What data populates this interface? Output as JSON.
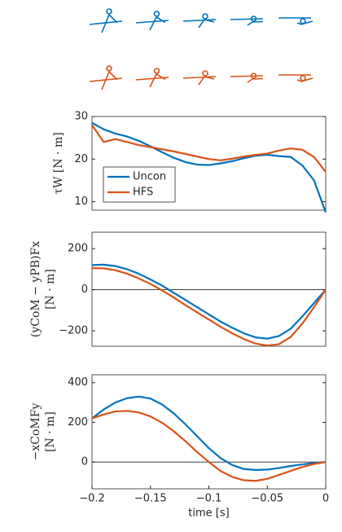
{
  "chart_data": [
    {
      "type": "line",
      "ylabel": "τW [N · m]",
      "x": [
        -0.2,
        -0.19,
        -0.18,
        -0.17,
        -0.16,
        -0.15,
        -0.14,
        -0.13,
        -0.12,
        -0.11,
        -0.1,
        -0.09,
        -0.08,
        -0.07,
        -0.06,
        -0.05,
        -0.04,
        -0.03,
        -0.02,
        -0.01,
        0
      ],
      "xlim": [
        -0.2,
        0
      ],
      "ylim": [
        8,
        30
      ],
      "yticks": [
        10,
        20,
        30
      ],
      "legend": "lower left",
      "series": [
        {
          "name": "Uncon",
          "color": "#0072bd",
          "values": [
            28.5,
            27,
            26,
            25.3,
            24.3,
            23,
            21.6,
            20.3,
            19.3,
            18.7,
            18.6,
            19,
            19.5,
            20.2,
            20.8,
            21,
            20.7,
            20.5,
            18.5,
            15,
            7.5
          ]
        },
        {
          "name": "HFS",
          "color": "#d95319",
          "values": [
            28,
            24,
            24.7,
            24,
            23.3,
            22.8,
            22.3,
            21.8,
            21.2,
            20.6,
            20,
            19.7,
            20.1,
            20.6,
            21,
            21.3,
            22,
            22.5,
            22.2,
            20.5,
            17
          ]
        }
      ]
    },
    {
      "type": "line",
      "ylabel": [
        "(yCoM − yPB)Fx",
        "[N · m]"
      ],
      "x": [
        -0.2,
        -0.19,
        -0.18,
        -0.17,
        -0.16,
        -0.15,
        -0.14,
        -0.13,
        -0.12,
        -0.11,
        -0.1,
        -0.09,
        -0.08,
        -0.07,
        -0.06,
        -0.05,
        -0.04,
        -0.03,
        -0.02,
        -0.01,
        0
      ],
      "xlim": [
        -0.2,
        0
      ],
      "ylim": [
        -275,
        280
      ],
      "yticks": [
        {
          "value": -200,
          "label": "−200"
        },
        0,
        200
      ],
      "zero_line": true,
      "series": [
        {
          "color": "#0072bd",
          "values": [
            120,
            122,
            115,
            100,
            78,
            50,
            20,
            -15,
            -50,
            -85,
            -120,
            -155,
            -185,
            -212,
            -232,
            -238,
            -225,
            -190,
            -130,
            -65,
            0
          ]
        },
        {
          "color": "#d95319",
          "values": [
            105,
            104,
            95,
            78,
            55,
            28,
            -3,
            -38,
            -75,
            -110,
            -145,
            -180,
            -212,
            -240,
            -262,
            -272,
            -265,
            -230,
            -165,
            -85,
            0
          ]
        }
      ]
    },
    {
      "type": "line",
      "ylabel": [
        "−xCoMFy",
        "[N · m]"
      ],
      "xlabel": "time [s]",
      "x": [
        -0.2,
        -0.19,
        -0.18,
        -0.17,
        -0.16,
        -0.15,
        -0.14,
        -0.13,
        -0.12,
        -0.11,
        -0.1,
        -0.09,
        -0.08,
        -0.07,
        -0.06,
        -0.05,
        -0.04,
        -0.03,
        -0.02,
        -0.01,
        0
      ],
      "xlim": [
        -0.2,
        0
      ],
      "ylim": [
        -135,
        440
      ],
      "yticks": [
        0,
        200,
        400
      ],
      "zero_line": true,
      "xticks": [
        {
          "value": -0.2,
          "label": "−0.2"
        },
        {
          "value": -0.15,
          "label": "−0.15"
        },
        {
          "value": -0.1,
          "label": "−0.1"
        },
        {
          "value": -0.05,
          "label": "−0.05"
        },
        0
      ],
      "series": [
        {
          "color": "#0072bd",
          "values": [
            220,
            265,
            300,
            322,
            330,
            320,
            290,
            245,
            190,
            130,
            70,
            20,
            -15,
            -35,
            -40,
            -38,
            -30,
            -20,
            -12,
            -5,
            0
          ]
        },
        {
          "color": "#d95319",
          "values": [
            220,
            240,
            255,
            258,
            250,
            230,
            198,
            155,
            105,
            50,
            0,
            -45,
            -75,
            -92,
            -95,
            -85,
            -65,
            -45,
            -25,
            -10,
            0
          ]
        }
      ]
    }
  ]
}
